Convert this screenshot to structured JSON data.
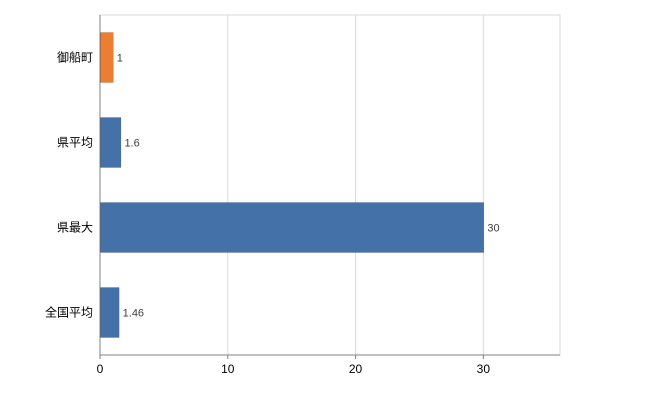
{
  "chart_data": {
    "type": "bar",
    "orientation": "horizontal",
    "title": "",
    "xlabel": "",
    "ylabel": "",
    "categories": [
      "御船町",
      "県平均",
      "県最大",
      "全国平均"
    ],
    "values": [
      1,
      1.6,
      30,
      1.46
    ],
    "value_labels": [
      "1",
      "1.6",
      "30",
      "1.46"
    ],
    "xlim": [
      0,
      36
    ],
    "x_ticks": [
      0,
      10,
      20,
      30
    ],
    "grid": true,
    "legend": false,
    "bar_colors": [
      "#ED7D31",
      "#4472A8",
      "#4472A8",
      "#4472A8"
    ],
    "colors": {
      "background": "#FFFFFF",
      "grid": "#D9D9D9",
      "plot_border": "#D9D9D9",
      "axis": "#808080",
      "label_text": "#000000",
      "value_text": "#404040"
    }
  }
}
